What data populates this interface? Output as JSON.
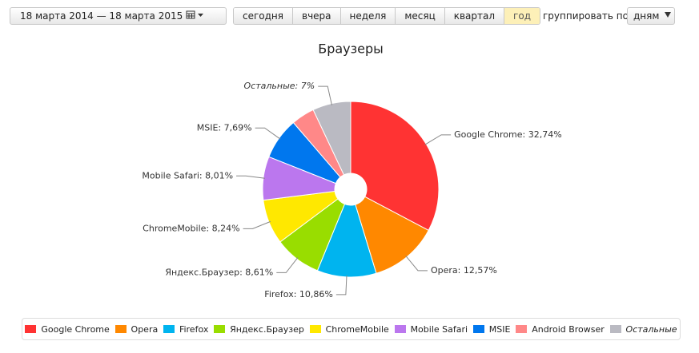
{
  "toolbar": {
    "date_range": "18 марта 2014 — 18 марта 2015",
    "periods": [
      "сегодня",
      "вчера",
      "неделя",
      "месяц",
      "квартал",
      "год"
    ],
    "active_period": "год",
    "group_label": "группировать по",
    "group_value": "дням"
  },
  "chart_data": {
    "type": "pie",
    "title": "Браузеры",
    "categories": [
      "Google Chrome",
      "Opera",
      "Firefox",
      "Яндекс.Браузер",
      "ChromeMobile",
      "Mobile Safari",
      "MSIE",
      "Android Browser",
      "Остальные"
    ],
    "values": [
      32.74,
      12.57,
      10.86,
      8.61,
      8.24,
      8.01,
      7.69,
      4.28,
      7
    ],
    "value_labels": [
      "Google Chrome: 32,74%",
      "Opera: 12,57%",
      "Firefox: 10,86%",
      "Яндекс.Браузер: 8,61%",
      "ChromeMobile: 8,24%",
      "Mobile Safari: 8,01%",
      "MSIE: 7,69%",
      null,
      "Остальные: 7%"
    ],
    "colors": [
      "#ff3333",
      "#ff8800",
      "#00b4ef",
      "#99dd00",
      "#ffe800",
      "#bb77ee",
      "#0077ee",
      "#ff8888",
      "#babac2"
    ],
    "italic_category": "Остальные",
    "legend": "bottom"
  }
}
